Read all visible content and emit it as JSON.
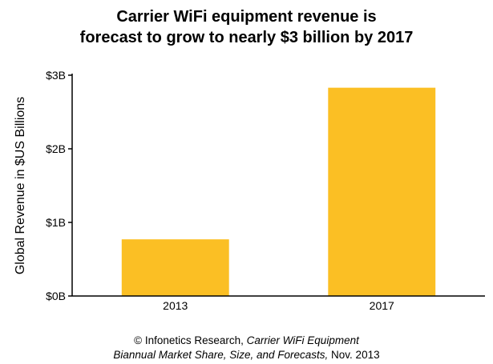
{
  "chart_data": {
    "type": "bar",
    "title_lines": [
      "Carrier WiFi equipment revenue is",
      "forecast to grow to nearly $3 billion by 2017"
    ],
    "xlabel": "",
    "ylabel": "Global Revenue in $US Billions",
    "categories": [
      "2013",
      "2017"
    ],
    "values": [
      0.77,
      2.83
    ],
    "ylim": [
      0,
      3
    ],
    "y_ticks": [
      0,
      1,
      2,
      3
    ],
    "y_tick_labels": [
      "$0B",
      "$1B",
      "$2B",
      "$3B"
    ],
    "bar_color": "#FBBF24",
    "grid": false,
    "legend": "none"
  },
  "source": {
    "line1_prefix": "© Infonetics Research, ",
    "line1_italic": "Carrier WiFi Equipment",
    "line2_italic": "Biannual Market Share, Size, and Forecasts,",
    "line2_suffix": " Nov. 2013"
  }
}
